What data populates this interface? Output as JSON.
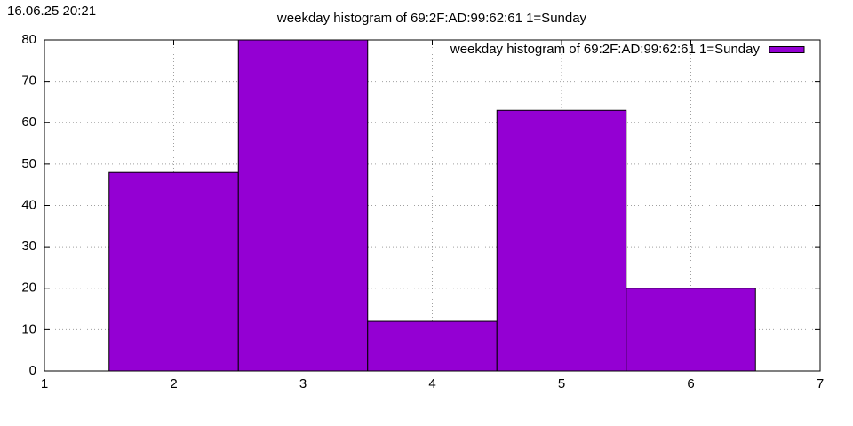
{
  "chart_data": {
    "type": "histogram",
    "timestamp": "16.06.25 20:21",
    "title": "weekday histogram of 69:2F:AD:99:62:61 1=Sunday",
    "bins": [
      1.5,
      2.5,
      3.5,
      4.5,
      5.5,
      6.5
    ],
    "series": [
      {
        "name": "weekday histogram of 69:2F:AD:99:62:61 1=Sunday",
        "color": "#9400d3",
        "values": [
          48,
          80,
          12,
          63,
          20
        ]
      }
    ],
    "xlim": [
      1,
      7
    ],
    "xticks": [
      1,
      2,
      3,
      4,
      5,
      6,
      7
    ],
    "ylim": [
      0,
      80
    ],
    "yticks": [
      0,
      10,
      20,
      30,
      40,
      50,
      60,
      70,
      80
    ],
    "grid": true,
    "legend": "top-right"
  }
}
